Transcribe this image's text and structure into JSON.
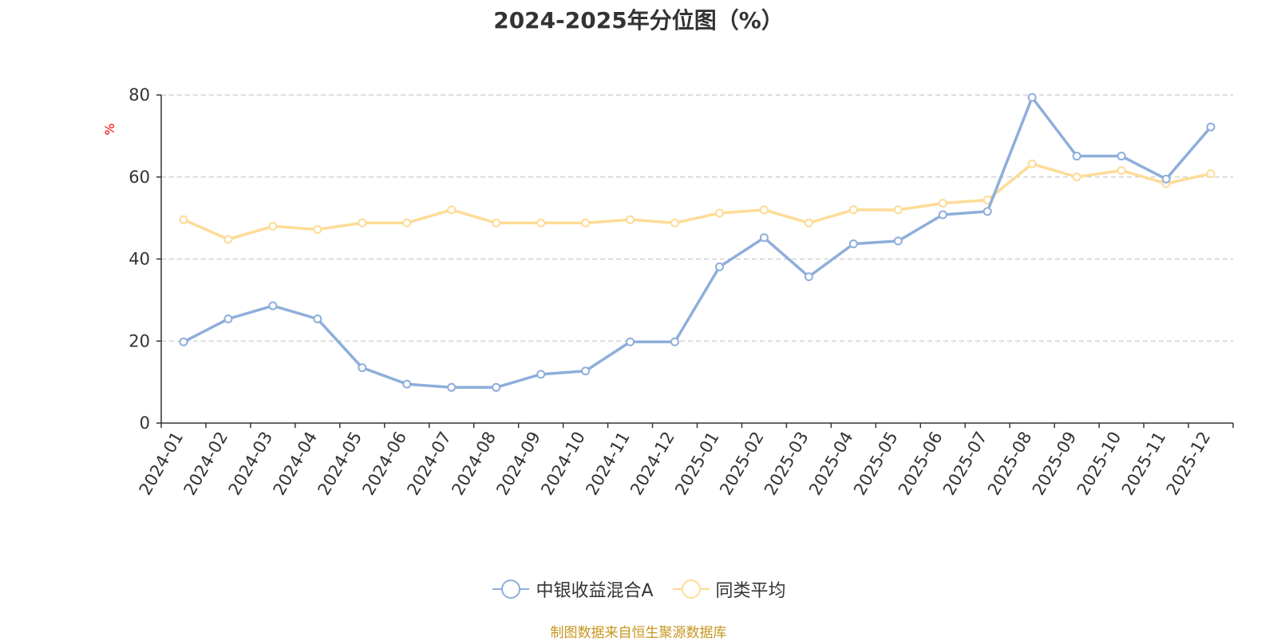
{
  "colors": {
    "fund": "#8eaedb",
    "avg": "#fedb96",
    "unit": "#ff0000",
    "source": "#c8961e"
  },
  "source_text": "制图数据来自恒生聚源数据库",
  "chart_data": {
    "type": "line",
    "title": "2024-2025年分位图（%）",
    "ylabel": "%",
    "ylim": [
      0,
      80
    ],
    "yticks": [
      0,
      20,
      40,
      60,
      80
    ],
    "grid": true,
    "legend_position": "bottom-center",
    "categories": [
      "2024-01",
      "2024-02",
      "2024-03",
      "2024-04",
      "2024-05",
      "2024-06",
      "2024-07",
      "2024-08",
      "2024-09",
      "2024-10",
      "2024-11",
      "2024-12",
      "2025-01",
      "2025-02",
      "2025-03",
      "2025-04",
      "2025-05",
      "2025-06",
      "2025-07",
      "2025-08",
      "2025-09",
      "2025-10",
      "2025-11",
      "2025-12"
    ],
    "series": [
      {
        "name": "中银收益混合A",
        "color": "#8eaedb",
        "values": [
          19.8,
          25.4,
          28.6,
          25.4,
          13.5,
          9.5,
          8.7,
          8.7,
          11.9,
          12.7,
          19.8,
          19.8,
          38.1,
          45.2,
          35.7,
          43.7,
          44.4,
          50.8,
          51.6,
          79.4,
          65.1,
          65.1,
          59.5,
          72.2
        ]
      },
      {
        "name": "同类平均",
        "color": "#fedb96",
        "values": [
          49.6,
          44.8,
          48.0,
          47.2,
          48.8,
          48.8,
          52.0,
          48.8,
          48.8,
          48.8,
          49.6,
          48.8,
          51.2,
          52.0,
          48.8,
          52.0,
          52.0,
          53.6,
          54.4,
          63.2,
          60.0,
          61.6,
          58.4,
          60.8
        ]
      }
    ]
  }
}
